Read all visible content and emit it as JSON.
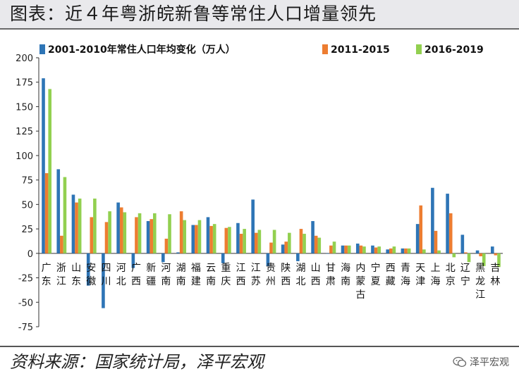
{
  "header": {
    "title": "图表：近４年粤浙皖新鲁等常住人口增量领先"
  },
  "footer": {
    "source": "资料来源：国家统计局，泽平宏观",
    "watermark": "泽平宏观"
  },
  "chart_data": {
    "type": "bar",
    "title": "",
    "xlabel": "",
    "ylabel": "",
    "ylim": [
      -75,
      200
    ],
    "yticks": [
      -75,
      -50,
      -25,
      0,
      25,
      50,
      75,
      100,
      125,
      150,
      175,
      200
    ],
    "grid": false,
    "legend_position": "top",
    "categories": [
      "广东",
      "浙江",
      "山东",
      "安徽",
      "四川",
      "河北",
      "广西",
      "新疆",
      "河南",
      "湖南",
      "福建",
      "云南",
      "重庆",
      "江西",
      "江苏",
      "贵州",
      "陕西",
      "湖北",
      "山西",
      "甘肃",
      "海南",
      "内蒙古",
      "宁夏",
      "西藏",
      "青海",
      "天津",
      "上海",
      "北京",
      "辽宁",
      "黑龙江",
      "吉林"
    ],
    "series": [
      {
        "name": "2001-2010年常住人口年均变化（万人）",
        "color": "#2e75b6",
        "values": [
          179,
          86,
          60,
          -33,
          -56,
          52,
          -15,
          33,
          -9,
          1,
          29,
          37,
          -10,
          31,
          55,
          -13,
          9,
          -8,
          33,
          0,
          8,
          10,
          8,
          4,
          5,
          30,
          67,
          61,
          19,
          3,
          7
        ]
      },
      {
        "name": "2011-2015",
        "color": "#ed7d31",
        "values": [
          82,
          18,
          52,
          37,
          32,
          47,
          37,
          35,
          15,
          43,
          29,
          28,
          26,
          20,
          21,
          11,
          12,
          25,
          18,
          8,
          8,
          8,
          6,
          5,
          5,
          49,
          23,
          41,
          1,
          -3,
          -2
        ]
      },
      {
        "name": "2016-2019",
        "color": "#92d050",
        "values": [
          168,
          78,
          56,
          56,
          43,
          42,
          41,
          41,
          40,
          34,
          34,
          30,
          27,
          25,
          24,
          24,
          21,
          20,
          16,
          12,
          8,
          7,
          7,
          7,
          5,
          4,
          3,
          -4,
          -9,
          -13,
          -14
        ]
      }
    ]
  }
}
